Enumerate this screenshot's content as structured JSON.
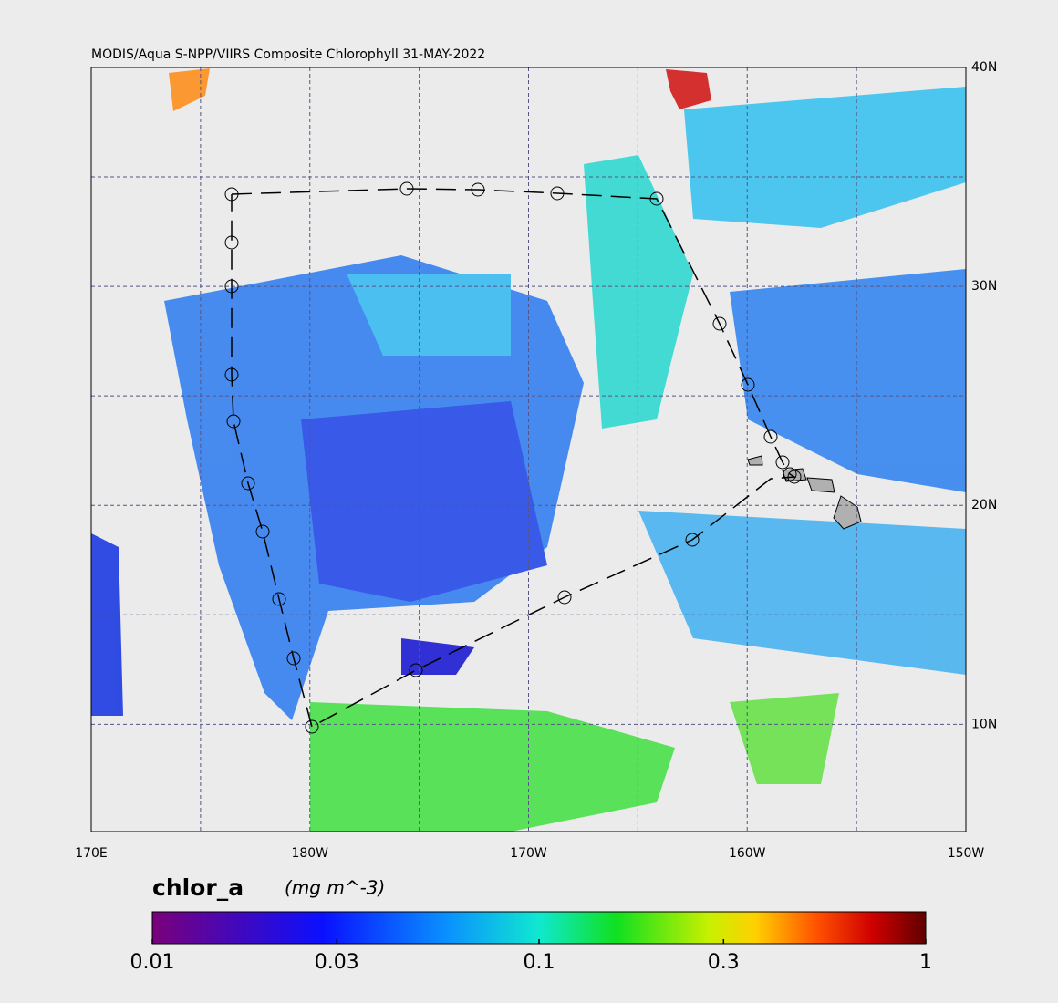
{
  "map": {
    "title": "MODIS/Aqua S-NPP/VIIRS Composite Chlorophyll 31-MAY-2022",
    "lonlim": [
      170,
      210
    ],
    "latlim": [
      5.1,
      40
    ],
    "lon_ticks": [
      {
        "value": 170,
        "label": "170E"
      },
      {
        "value": 180,
        "label": "180W"
      },
      {
        "value": 190,
        "label": "170W"
      },
      {
        "value": 200,
        "label": "160W"
      },
      {
        "value": 210,
        "label": "150W"
      }
    ],
    "lat_ticks": [
      {
        "value": 40,
        "label": "40N"
      },
      {
        "value": 30,
        "label": "30N"
      },
      {
        "value": 20,
        "label": "20N"
      },
      {
        "value": 10,
        "label": "10N"
      }
    ],
    "lon_grid": [
      175,
      180,
      185,
      190,
      195,
      200,
      205
    ],
    "lat_grid": [
      10,
      15,
      20,
      25,
      30,
      35
    ]
  },
  "colorbar": {
    "label": "chlor_a",
    "units": "(mg m^-3)",
    "log": true,
    "lim": [
      0.01,
      1
    ],
    "ticks": [
      0.01,
      0.03,
      0.1,
      0.3,
      1
    ]
  }
}
